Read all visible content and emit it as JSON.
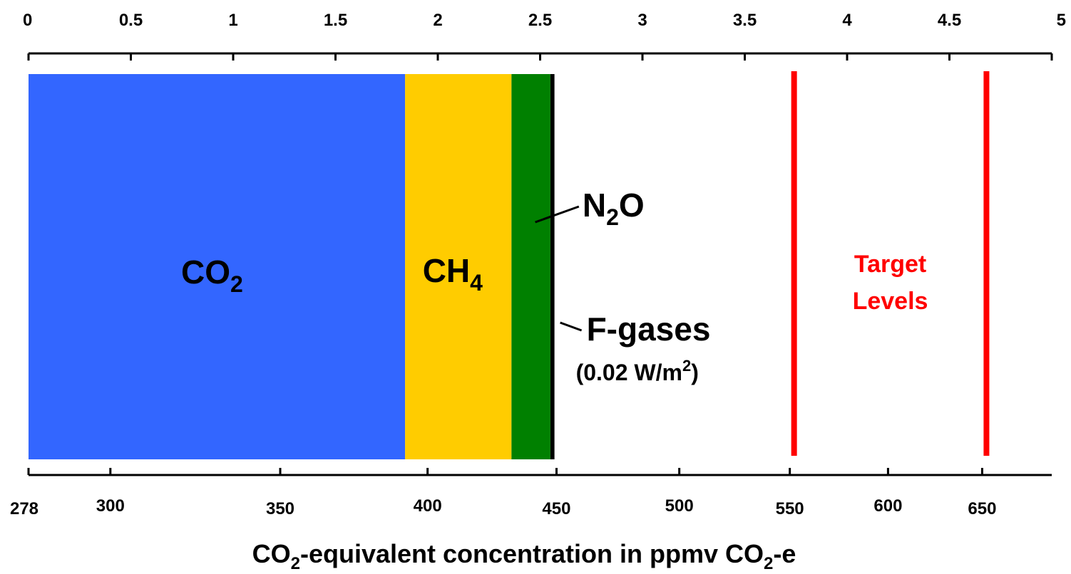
{
  "chart_data": {
    "type": "bar",
    "orientation": "horizontal-stacked",
    "top_axis": {
      "range": [
        0,
        5
      ],
      "ticks": [
        0,
        0.5,
        1,
        1.5,
        2,
        2.5,
        3,
        3.5,
        4,
        4.5,
        5
      ],
      "tick_labels": [
        "0",
        "0.5",
        "1",
        "1.5",
        "2",
        "2.5",
        "3",
        "3.5",
        "4",
        "4.5",
        "5"
      ]
    },
    "bottom_axis": {
      "scale": "nonlinear",
      "range": [
        278,
        700
      ],
      "ticks": [
        278,
        300,
        350,
        400,
        450,
        500,
        550,
        600,
        650
      ],
      "tick_labels": [
        "278",
        "300",
        "350",
        "400",
        "450",
        "500",
        "550",
        "600",
        "650"
      ],
      "tick_positions_top_units": [
        0,
        0.4,
        1.23,
        1.95,
        2.58,
        3.18,
        3.72,
        4.2,
        4.66
      ]
    },
    "segments": [
      {
        "name_main": "CO",
        "name_sub": "2",
        "start": 0,
        "end": 1.84,
        "color": "#3366ff"
      },
      {
        "name_main": "CH",
        "name_sub": "4",
        "start": 1.84,
        "end": 2.36,
        "color": "#ffcc00"
      },
      {
        "name_main": "N",
        "name_sub": "2",
        "name_tail": "O",
        "start": 2.36,
        "end": 2.55,
        "color": "#008000"
      },
      {
        "name_main": "F-gases",
        "start": 2.55,
        "end": 2.57,
        "color": "#000000",
        "note_pre": "(0.02 W/m",
        "note_sup": "2",
        "note_post": ")"
      }
    ],
    "target_levels": {
      "label_line1": "Target",
      "label_line2": "Levels",
      "color": "#ff0000",
      "values_ppmv": [
        550,
        650
      ]
    },
    "xlabel": {
      "parts": [
        "CO",
        "2",
        "-equivalent concentration in ppmv CO",
        "2",
        "-e"
      ]
    },
    "grid": false,
    "legend": "none"
  }
}
